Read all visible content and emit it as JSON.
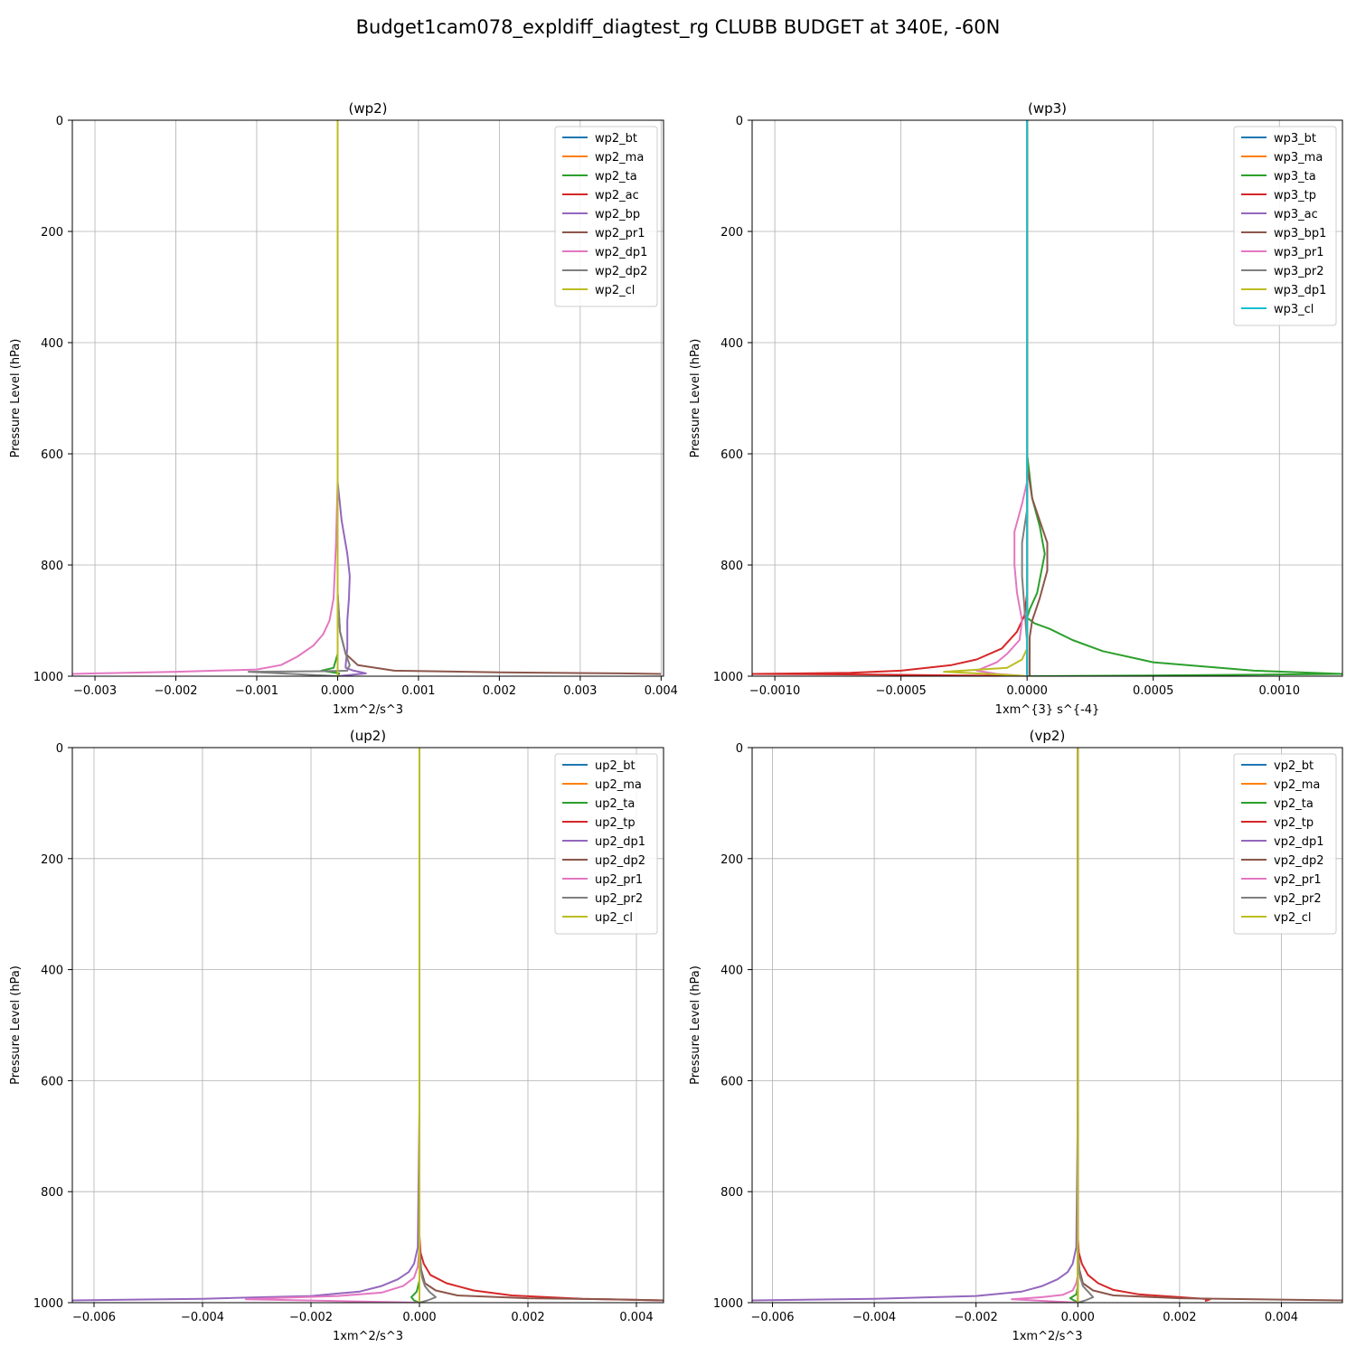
{
  "figure": {
    "title": "Budget1cam078_expldiff_diagtest_rg CLUBB BUDGET at 340E, -60N"
  },
  "chart_data": [
    {
      "type": "line",
      "title": "(wp2)",
      "xlabel": "1xm^2/s^3",
      "ylabel": "Pressure Level (hPa)",
      "xlim": [
        -0.00328,
        0.00403
      ],
      "ylim": [
        1000,
        0
      ],
      "y_inverted": true,
      "grid": true,
      "legend_position": "upper right",
      "xticks": [
        -0.003,
        -0.002,
        -0.001,
        0.0,
        0.001,
        0.002,
        0.003,
        0.004
      ],
      "xtick_labels": [
        "−0.003",
        "−0.002",
        "−0.001",
        "0.000",
        "0.001",
        "0.002",
        "0.003",
        "0.004"
      ],
      "yticks": [
        0,
        200,
        400,
        600,
        800,
        1000
      ],
      "ytick_labels": [
        "0",
        "200",
        "400",
        "600",
        "800",
        "1000"
      ],
      "series": [
        {
          "name": "wp2_bt",
          "color": "#1f77b4",
          "x": [
            0,
            0,
            0
          ],
          "y": [
            0,
            990,
            1000
          ]
        },
        {
          "name": "wp2_ma",
          "color": "#ff7f0e",
          "x": [
            0,
            0,
            0
          ],
          "y": [
            0,
            990,
            1000
          ]
        },
        {
          "name": "wp2_ta",
          "color": "#2ca02c",
          "x": [
            0,
            0,
            0,
            -5e-05,
            -0.0002,
            2e-05,
            0
          ],
          "y": [
            0,
            850,
            960,
            985,
            990,
            995,
            1000
          ]
        },
        {
          "name": "wp2_ac",
          "color": "#d62728",
          "x": [
            0,
            0,
            0
          ],
          "y": [
            0,
            990,
            1000
          ]
        },
        {
          "name": "wp2_bp",
          "color": "#9467bd",
          "x": [
            0,
            0,
            5e-05,
            0.00012,
            0.00015,
            0.00014,
            0.00012,
            0.00012,
            0.0001,
            0.0001,
            0.0002,
            0.00035,
            0
          ],
          "y": [
            0,
            650,
            720,
            780,
            820,
            860,
            900,
            950,
            980,
            985,
            990,
            995,
            1000
          ]
        },
        {
          "name": "wp2_pr1",
          "color": "#8c564b",
          "x": [
            0,
            0,
            3e-05,
            0.0001,
            0.00025,
            0.0007,
            0.002,
            0.0035,
            0.004
          ],
          "y": [
            0,
            850,
            920,
            960,
            980,
            990,
            993,
            995,
            996
          ]
        },
        {
          "name": "wp2_dp1",
          "color": "#e377c2",
          "x": [
            0,
            0,
            -2e-05,
            -5e-05,
            -0.0001,
            -0.00018,
            -0.0003,
            -0.0005,
            -0.0007,
            -0.001,
            -0.002,
            -0.003,
            -0.00328
          ],
          "y": [
            0,
            650,
            760,
            860,
            900,
            925,
            945,
            965,
            980,
            988,
            992,
            995,
            996
          ]
        },
        {
          "name": "wp2_dp2",
          "color": "#7f7f7f",
          "x": [
            0,
            0,
            3e-05,
            0.0001,
            0.00015,
            0.00013,
            0.00012,
            -0.0002,
            -0.0011,
            0
          ],
          "y": [
            0,
            850,
            920,
            960,
            980,
            985,
            990,
            991,
            992,
            1000
          ]
        },
        {
          "name": "wp2_cl",
          "color": "#bcbd22",
          "x": [
            0,
            0,
            0
          ],
          "y": [
            0,
            990,
            1000
          ]
        }
      ]
    },
    {
      "type": "line",
      "title": "(wp3)",
      "xlabel": "1xm^{3} s^{-4}",
      "ylabel": "Pressure Level (hPa)",
      "xlim": [
        -0.00109,
        0.00125
      ],
      "ylim": [
        1000,
        0
      ],
      "y_inverted": true,
      "grid": true,
      "legend_position": "upper right",
      "xticks": [
        -0.001,
        -0.0005,
        0.0,
        0.0005,
        0.001
      ],
      "xtick_labels": [
        "−0.0010",
        "−0.0005",
        "0.0000",
        "0.0005",
        "0.0010"
      ],
      "yticks": [
        0,
        200,
        400,
        600,
        800,
        1000
      ],
      "ytick_labels": [
        "0",
        "200",
        "400",
        "600",
        "800",
        "1000"
      ],
      "series": [
        {
          "name": "wp3_bt",
          "color": "#1f77b4",
          "x": [
            0,
            0,
            0
          ],
          "y": [
            0,
            990,
            1000
          ]
        },
        {
          "name": "wp3_ma",
          "color": "#ff7f0e",
          "x": [
            0,
            0,
            0
          ],
          "y": [
            0,
            990,
            1000
          ]
        },
        {
          "name": "wp3_ta",
          "color": "#2ca02c",
          "x": [
            0,
            0,
            2e-05,
            5e-05,
            7e-05,
            4e-05,
            1e-05,
            0,
            3e-05,
            9e-05,
            0.00018,
            0.0003,
            0.0005,
            0.0009,
            0.00125,
            0.0004,
            0
          ],
          "y": [
            0,
            600,
            680,
            730,
            780,
            850,
            880,
            895,
            905,
            915,
            935,
            955,
            975,
            990,
            996,
            999,
            1000
          ]
        },
        {
          "name": "wp3_tp",
          "color": "#d62728",
          "x": [
            0,
            0,
            -1e-05,
            -4e-05,
            -0.0001,
            -0.0002,
            -0.0003,
            -0.0005,
            -0.0007,
            -0.00109,
            -0.0006,
            -0.0002,
            0
          ],
          "y": [
            0,
            850,
            890,
            920,
            950,
            970,
            980,
            990,
            994,
            996,
            997,
            999,
            1000
          ]
        },
        {
          "name": "wp3_ac",
          "color": "#9467bd",
          "x": [
            0,
            0,
            0
          ],
          "y": [
            0,
            990,
            1000
          ]
        },
        {
          "name": "wp3_bp1",
          "color": "#8c564b",
          "x": [
            0,
            0,
            2e-05,
            5e-05,
            8e-05,
            8e-05,
            5e-05,
            2e-05,
            1e-05,
            1e-05,
            1e-05
          ],
          "y": [
            0,
            620,
            680,
            720,
            760,
            810,
            860,
            900,
            930,
            970,
            1000
          ]
        },
        {
          "name": "wp3_pr1",
          "color": "#e377c2",
          "x": [
            0,
            0,
            -2e-05,
            -5e-05,
            -5e-05,
            -4e-05,
            -2e-05,
            -3e-05,
            -8e-05,
            -0.00012,
            -0.0002,
            -0.00012,
            0
          ],
          "y": [
            0,
            650,
            690,
            740,
            800,
            850,
            900,
            935,
            960,
            975,
            990,
            996,
            1000
          ]
        },
        {
          "name": "wp3_pr2",
          "color": "#7f7f7f",
          "x": [
            0,
            0,
            -2e-05,
            -2e-05,
            -1e-05,
            0,
            0
          ],
          "y": [
            0,
            700,
            760,
            820,
            880,
            940,
            1000
          ]
        },
        {
          "name": "wp3_dp1",
          "color": "#bcbd22",
          "x": [
            0,
            0,
            -2e-05,
            -8e-05,
            -0.00033,
            -0.0001,
            0
          ],
          "y": [
            0,
            950,
            970,
            985,
            992,
            997,
            1000
          ]
        },
        {
          "name": "wp3_cl",
          "color": "#17becf",
          "x": [
            0,
            0,
            0
          ],
          "y": [
            0,
            990,
            1000
          ]
        }
      ]
    },
    {
      "type": "line",
      "title": "(up2)",
      "xlabel": "1xm^2/s^3",
      "ylabel": "Pressure Level (hPa)",
      "xlim": [
        -0.0064,
        0.0045
      ],
      "ylim": [
        1000,
        0
      ],
      "y_inverted": true,
      "grid": true,
      "legend_position": "upper right",
      "xticks": [
        -0.006,
        -0.004,
        -0.002,
        0.0,
        0.002,
        0.004
      ],
      "xtick_labels": [
        "−0.006",
        "−0.004",
        "−0.002",
        "0.000",
        "0.002",
        "0.004"
      ],
      "yticks": [
        0,
        200,
        400,
        600,
        800,
        1000
      ],
      "ytick_labels": [
        "0",
        "200",
        "400",
        "600",
        "800",
        "1000"
      ],
      "series": [
        {
          "name": "up2_bt",
          "color": "#1f77b4",
          "x": [
            0,
            0,
            0
          ],
          "y": [
            0,
            990,
            1000
          ]
        },
        {
          "name": "up2_ma",
          "color": "#ff7f0e",
          "x": [
            0,
            0,
            0
          ],
          "y": [
            0,
            990,
            1000
          ]
        },
        {
          "name": "up2_ta",
          "color": "#2ca02c",
          "x": [
            0,
            0,
            -5e-05,
            -0.00015,
            -0.0001,
            0
          ],
          "y": [
            0,
            960,
            980,
            990,
            996,
            1000
          ]
        },
        {
          "name": "up2_tp",
          "color": "#d62728",
          "x": [
            0,
            0,
            2e-05,
            8e-05,
            0.0002,
            0.0005,
            0.001,
            0.0017,
            0.003,
            0.0045
          ],
          "y": [
            0,
            880,
            910,
            930,
            950,
            965,
            978,
            987,
            993,
            996
          ]
        },
        {
          "name": "up2_dp1",
          "color": "#9467bd",
          "x": [
            0,
            0,
            -3e-05,
            -0.0001,
            -0.0002,
            -0.0004,
            -0.0007,
            -0.0011,
            -0.002,
            -0.004,
            -0.0064
          ],
          "y": [
            0,
            650,
            900,
            930,
            945,
            958,
            970,
            980,
            988,
            993,
            996
          ]
        },
        {
          "name": "up2_dp2",
          "color": "#8c564b",
          "x": [
            0,
            0,
            3e-05,
            0.0001,
            0.0003,
            0.0007,
            0.002,
            0.0035,
            0.0045
          ],
          "y": [
            0,
            900,
            940,
            965,
            978,
            987,
            992,
            994,
            996
          ]
        },
        {
          "name": "up2_pr1",
          "color": "#e377c2",
          "x": [
            0,
            0,
            -3e-05,
            -0.0001,
            -0.0003,
            -0.0007,
            -0.0015,
            -0.0025,
            -0.0032,
            0
          ],
          "y": [
            0,
            900,
            935,
            955,
            970,
            982,
            988,
            991,
            994,
            1000
          ]
        },
        {
          "name": "up2_pr2",
          "color": "#7f7f7f",
          "x": [
            0,
            0,
            2e-05,
            5e-05,
            0.0001,
            0.00018,
            0.0003,
            0.00015,
            0
          ],
          "y": [
            0,
            900,
            935,
            955,
            970,
            980,
            990,
            996,
            1000
          ]
        },
        {
          "name": "up2_cl",
          "color": "#bcbd22",
          "x": [
            0,
            0,
            0
          ],
          "y": [
            0,
            990,
            1000
          ]
        }
      ]
    },
    {
      "type": "line",
      "title": "(vp2)",
      "xlabel": "1xm^2/s^3",
      "ylabel": "Pressure Level (hPa)",
      "xlim": [
        -0.0064,
        0.0052
      ],
      "ylim": [
        1000,
        0
      ],
      "y_inverted": true,
      "grid": true,
      "legend_position": "upper right",
      "xticks": [
        -0.006,
        -0.004,
        -0.002,
        0.0,
        0.002,
        0.004
      ],
      "xtick_labels": [
        "−0.006",
        "−0.004",
        "−0.002",
        "0.000",
        "0.002",
        "0.004"
      ],
      "yticks": [
        0,
        200,
        400,
        600,
        800,
        1000
      ],
      "ytick_labels": [
        "0",
        "200",
        "400",
        "600",
        "800",
        "1000"
      ],
      "series": [
        {
          "name": "vp2_bt",
          "color": "#1f77b4",
          "x": [
            0,
            0,
            0
          ],
          "y": [
            0,
            990,
            1000
          ]
        },
        {
          "name": "vp2_ma",
          "color": "#ff7f0e",
          "x": [
            0,
            0,
            0
          ],
          "y": [
            0,
            990,
            1000
          ]
        },
        {
          "name": "vp2_ta",
          "color": "#2ca02c",
          "x": [
            0,
            0,
            -3e-05,
            -0.00015,
            -5e-05,
            0
          ],
          "y": [
            0,
            970,
            985,
            992,
            997,
            1000
          ]
        },
        {
          "name": "vp2_tp",
          "color": "#d62728",
          "x": [
            0,
            0,
            2e-05,
            8e-05,
            0.0002,
            0.0004,
            0.0007,
            0.0012,
            0.002,
            0.0026,
            0.0025
          ],
          "y": [
            0,
            880,
            910,
            930,
            950,
            965,
            977,
            985,
            990,
            994,
            997
          ]
        },
        {
          "name": "vp2_dp1",
          "color": "#9467bd",
          "x": [
            0,
            0,
            -3e-05,
            -0.0001,
            -0.0002,
            -0.0004,
            -0.0007,
            -0.0011,
            -0.002,
            -0.004,
            -0.0064
          ],
          "y": [
            0,
            650,
            900,
            930,
            945,
            958,
            970,
            980,
            988,
            993,
            996
          ]
        },
        {
          "name": "vp2_dp2",
          "color": "#8c564b",
          "x": [
            0,
            0,
            3e-05,
            0.0001,
            0.0003,
            0.0007,
            0.002,
            0.0035,
            0.0052
          ],
          "y": [
            0,
            900,
            940,
            965,
            978,
            987,
            992,
            994,
            996
          ]
        },
        {
          "name": "vp2_pr1",
          "color": "#e377c2",
          "x": [
            0,
            0,
            -3e-05,
            -0.0001,
            -0.0003,
            -0.0007,
            -0.0013,
            0
          ],
          "y": [
            0,
            950,
            965,
            978,
            986,
            990,
            994,
            1000
          ]
        },
        {
          "name": "vp2_pr2",
          "color": "#7f7f7f",
          "x": [
            0,
            0,
            2e-05,
            5e-05,
            0.0001,
            0.0002,
            0.0003,
            0.00015,
            0
          ],
          "y": [
            0,
            900,
            935,
            955,
            970,
            980,
            990,
            996,
            1000
          ]
        },
        {
          "name": "vp2_cl",
          "color": "#bcbd22",
          "x": [
            0,
            0,
            0
          ],
          "y": [
            0,
            990,
            1000
          ]
        }
      ]
    }
  ]
}
